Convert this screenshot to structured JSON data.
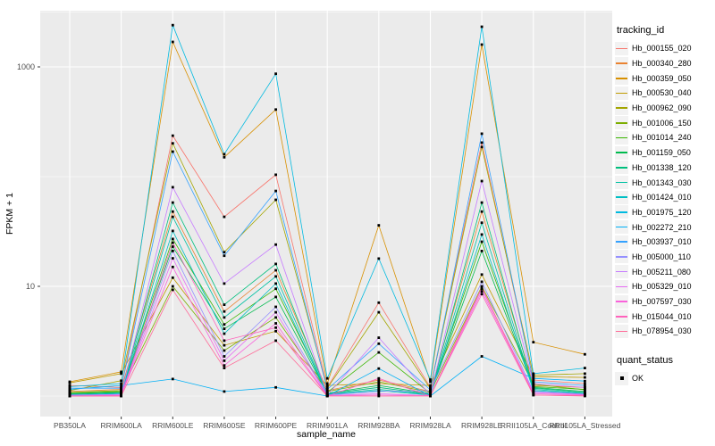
{
  "chart_data": {
    "type": "line",
    "title": "",
    "xlabel": "sample_name",
    "ylabel": "FPKM + 1",
    "y_scale": "log10",
    "y_ticks": [
      {
        "label": "10",
        "value": 10
      },
      {
        "label": "1000",
        "value": 1000
      }
    ],
    "y_minor": [
      1,
      100,
      3162
    ],
    "ylim_log": [
      -0.19,
      3.52
    ],
    "grid": "on",
    "panel_bg": "#EBEBEB",
    "grid_color": "#FFFFFF",
    "tick_label_color": "#4D4D4D",
    "point_color": "#000000",
    "point_shape": "square",
    "legend_position": "right",
    "categories": [
      "PB350LA",
      "RRIM600LA",
      "RRIM600LE",
      "RRIM600SE",
      "RRIM600PE",
      "RRIM901LA",
      "RRIM928BA",
      "RRIM928LA",
      "RRIM928LE",
      "RRII105LA_Control",
      "RRII105LA_Stressed"
    ],
    "series": [
      {
        "name": "Hb_000155_020",
        "color": "#F8766D",
        "values": [
          1.25,
          1.2,
          236,
          43,
          104,
          1.2,
          7.1,
          1.2,
          204,
          1.4,
          1.3
        ]
      },
      {
        "name": "Hb_000340_280",
        "color": "#EA8331",
        "values": [
          1.1,
          1.15,
          48,
          5.9,
          14,
          1.12,
          1.4,
          1.1,
          48,
          1.25,
          1.2
        ]
      },
      {
        "name": "Hb_000359_050",
        "color": "#D89000",
        "values": [
          1.35,
          1.66,
          1690,
          150,
          409,
          1.3,
          36,
          1.35,
          1597,
          3.1,
          2.4
        ]
      },
      {
        "name": "Hb_000530_040",
        "color": "#C09B00",
        "values": [
          1.32,
          1.6,
          12,
          2.9,
          3.9,
          1.25,
          1.3,
          1.25,
          12.8,
          1.5,
          1.48
        ]
      },
      {
        "name": "Hb_000962_090",
        "color": "#A3A500",
        "values": [
          1.12,
          1.38,
          201,
          20.5,
          61.5,
          1.18,
          5.8,
          1.17,
          186,
          1.55,
          1.6
        ]
      },
      {
        "name": "Hb_001006_150",
        "color": "#7CAE00",
        "values": [
          1.08,
          1.12,
          10,
          2.6,
          5.2,
          1.1,
          1.35,
          1.08,
          10,
          1.28,
          1.14
        ]
      },
      {
        "name": "Hb_001014_240",
        "color": "#39B600",
        "values": [
          1.06,
          1.1,
          27,
          4.5,
          9.5,
          1.08,
          2.5,
          1.06,
          25.5,
          1.22,
          1.15
        ]
      },
      {
        "name": "Hb_001159_050",
        "color": "#00BB4E",
        "values": [
          1.05,
          1.08,
          23,
          4.1,
          8.0,
          1.06,
          1.25,
          1.05,
          21,
          1.2,
          1.1
        ]
      },
      {
        "name": "Hb_001338_120",
        "color": "#00BF7D",
        "values": [
          1.04,
          1.07,
          58,
          6.8,
          16,
          1.05,
          1.2,
          1.04,
          58,
          1.18,
          1.08
        ]
      },
      {
        "name": "Hb_001343_030",
        "color": "#00C1A3",
        "values": [
          1.03,
          1.06,
          43,
          5.2,
          12.3,
          1.04,
          1.15,
          1.03,
          38,
          1.15,
          1.06
        ]
      },
      {
        "name": "Hb_001424_010",
        "color": "#00BFC4",
        "values": [
          1.02,
          1.05,
          32,
          3.7,
          10.6,
          1.03,
          1.12,
          1.02,
          29.7,
          1.12,
          1.05
        ]
      },
      {
        "name": "Hb_001975_120",
        "color": "#00BAE0",
        "values": [
          1.22,
          1.3,
          2400,
          160,
          865,
          1.45,
          17.9,
          1.41,
          2323,
          1.6,
          1.8
        ]
      },
      {
        "name": "Hb_002272_210",
        "color": "#00B0F6",
        "values": [
          1.15,
          1.25,
          1.43,
          1.1,
          1.2,
          1.0,
          1.78,
          1.0,
          2.3,
          1.45,
          1.37
        ]
      },
      {
        "name": "Hb_003937_010",
        "color": "#35A2FF",
        "values": [
          1.18,
          1.18,
          169,
          19,
          74,
          1.15,
          3.0,
          1.14,
          246,
          1.35,
          1.25
        ]
      },
      {
        "name": "Hb_005000_110",
        "color": "#9590FF",
        "values": [
          1.01,
          1.04,
          21,
          2.3,
          6.5,
          1.02,
          1.1,
          1.12,
          11,
          1.1,
          1.04
        ]
      },
      {
        "name": "Hb_005211_080",
        "color": "#C77CFF",
        "values": [
          1.02,
          1.03,
          80,
          10.6,
          24,
          1.02,
          3.4,
          1.02,
          91,
          1.3,
          1.2
        ]
      },
      {
        "name": "Hb_005329_010",
        "color": "#E76BF3",
        "values": [
          1.0,
          1.02,
          18,
          2.1,
          5.8,
          1.01,
          1.05,
          1.01,
          9.5,
          1.08,
          1.03
        ]
      },
      {
        "name": "Hb_007597_030",
        "color": "#FA62DB",
        "values": [
          1.0,
          1.01,
          15,
          1.9,
          4.6,
          1.01,
          1.02,
          1.01,
          9.0,
          1.05,
          1.02
        ]
      },
      {
        "name": "Hb_015044_010",
        "color": "#FF62BC",
        "values": [
          1.0,
          1.0,
          25,
          3.2,
          4.2,
          1.0,
          1.45,
          1.0,
          8.5,
          1.02,
          1.01
        ]
      },
      {
        "name": "Hb_078954_030",
        "color": "#FF6A98",
        "values": [
          1.0,
          1.0,
          9.3,
          1.8,
          3.2,
          1.0,
          1.0,
          1.0,
          9.8,
          1.02,
          1.0
        ]
      }
    ]
  },
  "legend": {
    "tracking_title": "tracking_id",
    "quant_title": "quant_status",
    "quant_items": [
      {
        "label": "OK"
      }
    ]
  },
  "axes": {
    "x_title": "sample_name",
    "y_title": "FPKM + 1"
  }
}
